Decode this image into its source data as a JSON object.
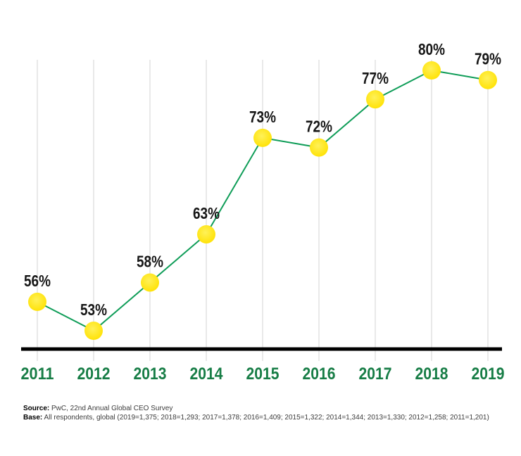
{
  "chart_data": {
    "type": "line",
    "categories": [
      "2011",
      "2012",
      "2013",
      "2014",
      "2015",
      "2016",
      "2017",
      "2018",
      "2019"
    ],
    "values": [
      56,
      53,
      58,
      63,
      73,
      72,
      77,
      80,
      79
    ],
    "point_labels": [
      "56%",
      "53%",
      "58%",
      "63%",
      "73%",
      "72%",
      "77%",
      "80%",
      "79%"
    ],
    "unit": "%",
    "xlabel": "",
    "ylabel": "",
    "ylim": [
      50,
      83
    ],
    "grid": "vertical-only",
    "legend": "none",
    "x_axis_line": true
  },
  "style": {
    "dot_color": "#ffe100",
    "dot_highlight": "#fff159",
    "line_color": "#0f9d58",
    "year_label_color": "#177d46",
    "axis_color": "#000000",
    "gridline_color": "#e9e9e9",
    "data_label_color": "#161616"
  },
  "footer": {
    "source_label": "Source:",
    "source_text": " PwC, 22nd Annual Global CEO Survey",
    "base_label": "Base:",
    "base_text": " All respondents, global (2019=1,375; 2018=1,293; 2017=1,378; 2016=1,409; 2015=1,322; 2014=1,344; 2013=1,330; 2012=1,258; 2011=1,201)"
  }
}
